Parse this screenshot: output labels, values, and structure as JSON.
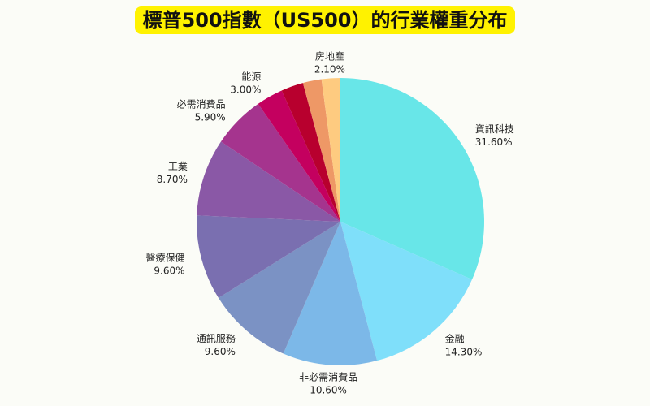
{
  "chart_data": {
    "type": "pie",
    "title": "標普500指數（US500）的行業權重分布",
    "start_angle_deg": 90,
    "direction": "clockwise",
    "slices": [
      {
        "label": "資訊科技",
        "value": 31.6,
        "display": "31.60%",
        "color": "#68e6e8"
      },
      {
        "label": "金融",
        "value": 14.3,
        "display": "14.30%",
        "color": "#7fdffa"
      },
      {
        "label": "非必需消費品",
        "value": 10.6,
        "display": "10.60%",
        "color": "#7cb8e8"
      },
      {
        "label": "通訊服務",
        "value": 9.6,
        "display": "9.60%",
        "color": "#7b92c4"
      },
      {
        "label": "醫療保健",
        "value": 9.6,
        "display": "9.60%",
        "color": "#7a6fb0"
      },
      {
        "label": "工業",
        "value": 8.7,
        "display": "8.70%",
        "color": "#8a58a6"
      },
      {
        "label": "必需消費品",
        "value": 5.9,
        "display": "5.90%",
        "color": "#a5348e"
      },
      {
        "label": "能源",
        "value": 3.0,
        "display": "3.00%",
        "color": "#c4005f"
      },
      {
        "label": "",
        "value": 2.5,
        "display": "",
        "color": "#b8002e"
      },
      {
        "label": "",
        "value": 2.1,
        "display": "",
        "color": "#ee9866"
      },
      {
        "label": "房地產",
        "value": 2.1,
        "display": "2.10%",
        "color": "#fecb80"
      }
    ]
  }
}
